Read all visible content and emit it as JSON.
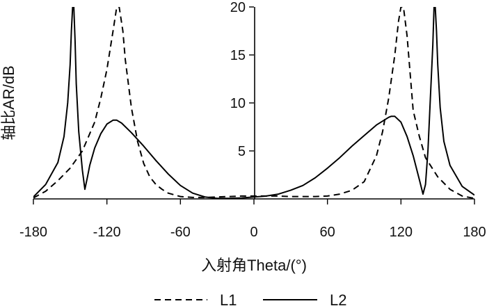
{
  "chart_data": {
    "type": "line",
    "title": "",
    "xlabel": "入射角Theta/(°)",
    "ylabel": "轴比AR/dB",
    "xlim": [
      -180,
      180
    ],
    "ylim": [
      0,
      20
    ],
    "x_ticks": [
      "-180",
      "-120",
      "-60",
      "0",
      "60",
      "120",
      "180"
    ],
    "y_ticks": [
      "5",
      "10",
      "15",
      "20"
    ],
    "grid": false,
    "legend_position": "bottom",
    "legend": [
      {
        "name": "L1",
        "style": "dashed"
      },
      {
        "name": "L2",
        "style": "solid"
      }
    ],
    "series": [
      {
        "name": "L1",
        "style": "dashed",
        "color": "#000000",
        "x": [
          -180,
          -170,
          -160,
          -150,
          -140,
          -130,
          -125,
          -120,
          -115,
          -112,
          -110,
          -107,
          -105,
          -100,
          -95,
          -90,
          -85,
          -80,
          -75,
          -70,
          -60,
          -50,
          -40,
          -30,
          -20,
          -10,
          0,
          10,
          20,
          30,
          40,
          50,
          60,
          70,
          80,
          90,
          100,
          105,
          110,
          115,
          118,
          120,
          122,
          125,
          130,
          135,
          140,
          150,
          160,
          170,
          180
        ],
        "y": [
          0.1,
          0.8,
          1.9,
          3.2,
          5.0,
          8.0,
          10.5,
          13.5,
          17.5,
          20,
          20,
          17.5,
          14.5,
          9.5,
          6.0,
          3.7,
          2.3,
          1.5,
          1.0,
          0.6,
          0.25,
          0.15,
          0.15,
          0.2,
          0.25,
          0.3,
          0.3,
          0.3,
          0.3,
          0.25,
          0.25,
          0.25,
          0.3,
          0.5,
          0.9,
          1.8,
          4.5,
          7.0,
          10.5,
          15.0,
          18.5,
          20,
          20,
          17.0,
          9.2,
          6.5,
          4.3,
          2.3,
          1.0,
          0.3,
          0.05
        ]
      },
      {
        "name": "L2",
        "style": "solid",
        "color": "#000000",
        "x": [
          -180,
          -170,
          -160,
          -155,
          -152,
          -150,
          -149,
          -148,
          -147,
          -146,
          -145,
          -143,
          -140,
          -138,
          -136,
          -134,
          -130,
          -125,
          -120,
          -115,
          -112,
          -108,
          -100,
          -90,
          -80,
          -70,
          -60,
          -50,
          -40,
          -30,
          -20,
          -10,
          0,
          10,
          20,
          30,
          40,
          50,
          60,
          70,
          80,
          90,
          100,
          110,
          112,
          115,
          120,
          125,
          130,
          135,
          138,
          140,
          142,
          144,
          146,
          147,
          148,
          149,
          150,
          152,
          155,
          160,
          170,
          180
        ],
        "y": [
          0.2,
          1.5,
          3.8,
          6.5,
          10.0,
          14.0,
          17.5,
          20,
          20,
          16.5,
          12.0,
          7.0,
          3.0,
          1.0,
          2.2,
          3.5,
          5.3,
          6.8,
          7.8,
          8.2,
          8.2,
          7.9,
          6.9,
          5.5,
          4.0,
          2.6,
          1.4,
          0.6,
          0.2,
          0.05,
          0.05,
          0.1,
          0.2,
          0.3,
          0.5,
          0.9,
          1.4,
          2.2,
          3.2,
          4.3,
          5.5,
          6.6,
          7.7,
          8.5,
          8.6,
          8.6,
          8.0,
          6.5,
          4.5,
          2.0,
          0.5,
          1.5,
          5.0,
          10.5,
          16.0,
          20,
          20,
          17.5,
          14.0,
          9.5,
          6.0,
          3.5,
          1.3,
          0.4
        ]
      }
    ]
  }
}
